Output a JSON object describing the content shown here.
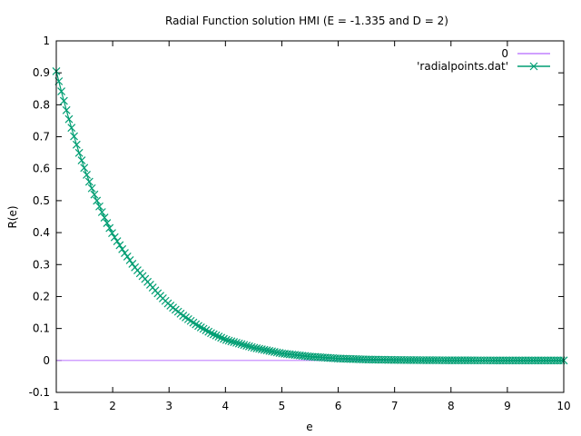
{
  "chart_data": {
    "type": "line",
    "title": "Radial Function solution HMI (E = -1.335 and D = 2)",
    "xlabel": "e",
    "ylabel": "R(e)",
    "xlim": [
      1,
      10
    ],
    "ylim": [
      -0.1,
      1
    ],
    "x_ticks": [
      1,
      2,
      3,
      4,
      5,
      6,
      7,
      8,
      9,
      10
    ],
    "y_ticks": [
      -0.1,
      0,
      0.1,
      0.2,
      0.3,
      0.4,
      0.5,
      0.6,
      0.7,
      0.8,
      0.9,
      1
    ],
    "x_tick_labels": [
      "1",
      "2",
      "3",
      "4",
      "5",
      "6",
      "7",
      "8",
      "9",
      "10"
    ],
    "y_tick_labels": [
      "-0.1",
      "0",
      "0.1",
      "0.2",
      "0.3",
      "0.4",
      "0.5",
      "0.6",
      "0.7",
      "0.8",
      "0.9",
      "1"
    ],
    "grid": false,
    "legend_position": "top-right",
    "series": [
      {
        "name": "0",
        "style": "line",
        "color": "#c080ff",
        "x": [
          1,
          10
        ],
        "y": [
          0,
          0
        ]
      },
      {
        "name": "'radialpoints.dat'",
        "style": "linespoints",
        "marker": "x",
        "color": "#009e73",
        "x": [
          1.0,
          1.1,
          1.2,
          1.3,
          1.4,
          1.5,
          1.6,
          1.7,
          1.8,
          1.9,
          2.0,
          2.2,
          2.4,
          2.6,
          2.8,
          3.0,
          3.25,
          3.5,
          3.75,
          4.0,
          4.5,
          5.0,
          5.5,
          6.0,
          6.5,
          7.0,
          7.5,
          8.0,
          8.5,
          9.0,
          9.5,
          10.0
        ],
        "y": [
          0.905,
          0.835,
          0.77,
          0.71,
          0.652,
          0.6,
          0.552,
          0.508,
          0.468,
          0.43,
          0.395,
          0.34,
          0.29,
          0.25,
          0.21,
          0.175,
          0.14,
          0.11,
          0.085,
          0.065,
          0.04,
          0.022,
          0.012,
          0.006,
          0.003,
          0.0015,
          0.0008,
          0.0004,
          0.0002,
          0.0001,
          5e-05,
          0.0
        ]
      }
    ]
  }
}
